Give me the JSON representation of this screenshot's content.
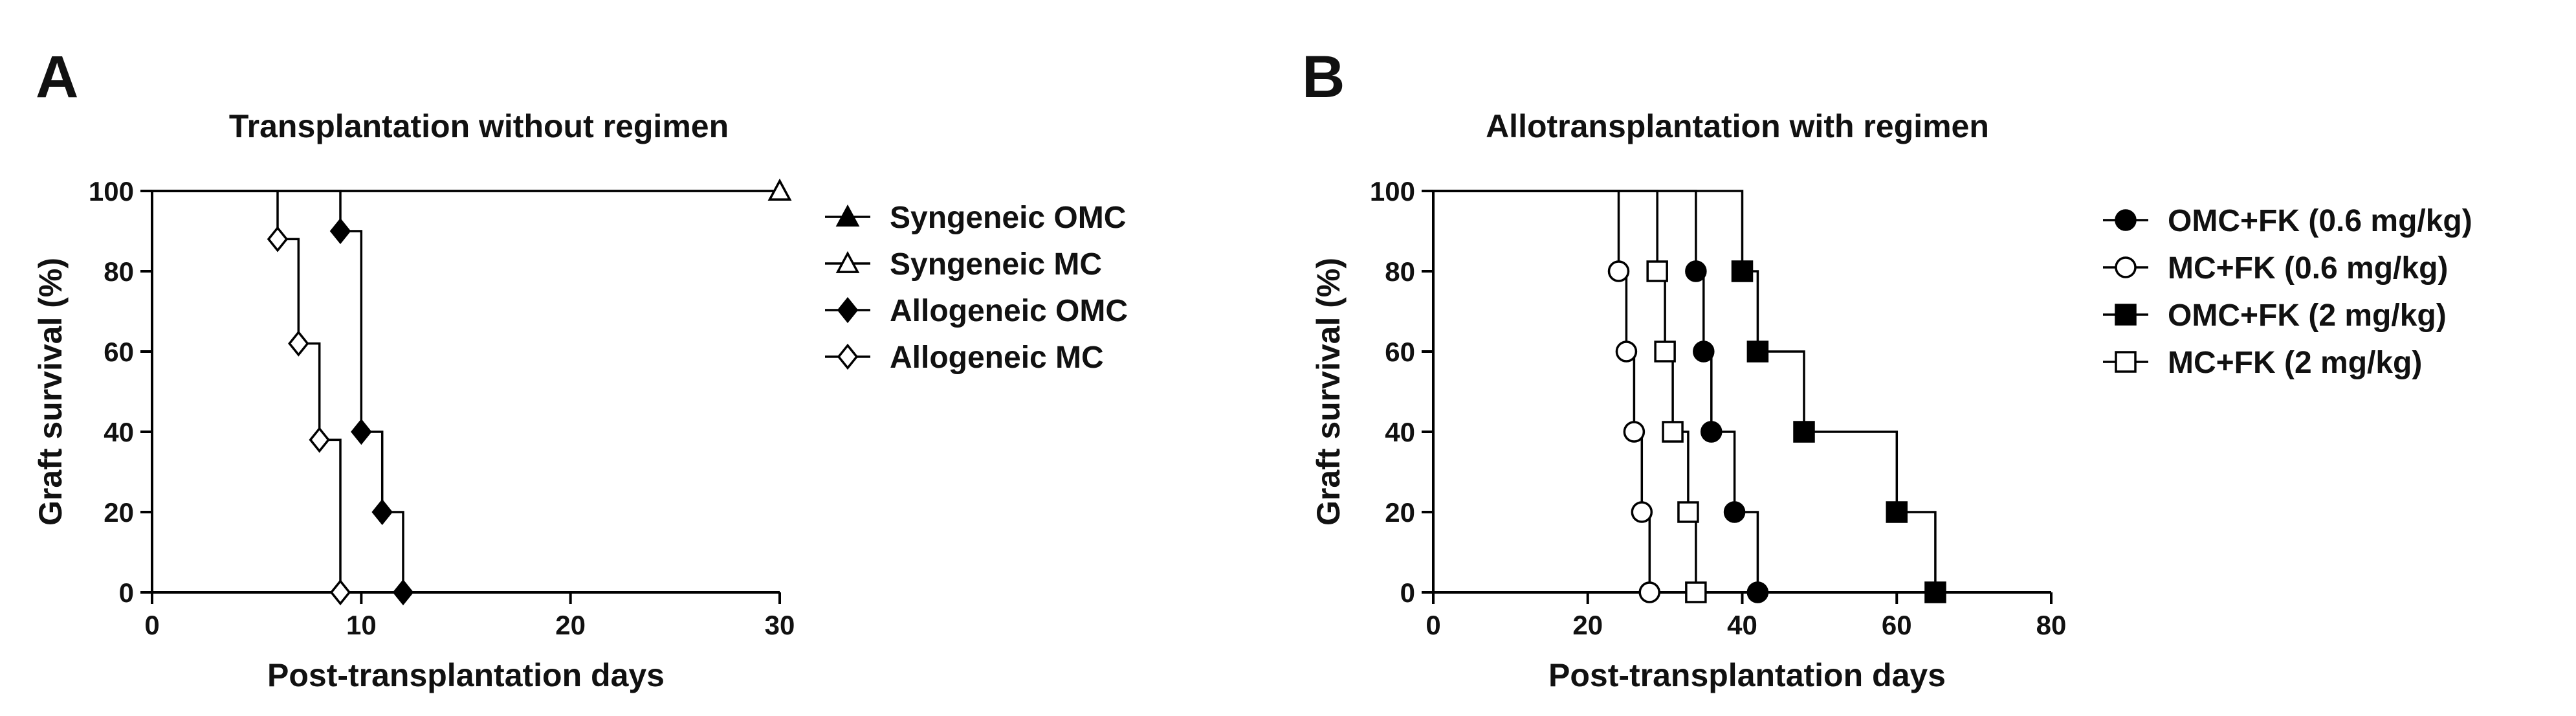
{
  "chart_data": [
    {
      "panel": "A",
      "type": "line",
      "step": true,
      "title": "Transplantation without regimen",
      "xlabel": "Post-transplantation days",
      "ylabel": "Graft survival (%)",
      "xlim": [
        0,
        30
      ],
      "ylim": [
        0,
        100
      ],
      "xticks": [
        "0",
        "10",
        "20",
        "30"
      ],
      "yticks": [
        "0",
        "20",
        "40",
        "60",
        "80",
        "100"
      ],
      "grid": false,
      "legend_position": "right",
      "series": [
        {
          "name": "Syngeneic OMC",
          "marker": "triangle-filled",
          "line": [
            [
              0,
              100
            ],
            [
              30,
              100
            ]
          ],
          "points": [
            [
              30,
              100
            ]
          ]
        },
        {
          "name": "Syngeneic MC",
          "marker": "triangle-open",
          "line": [
            [
              0,
              100
            ],
            [
              30,
              100
            ]
          ],
          "points": [
            [
              30,
              100
            ]
          ]
        },
        {
          "name": "Allogeneic OMC",
          "marker": "diamond-filled",
          "line": [
            [
              0,
              100
            ],
            [
              9,
              100
            ],
            [
              9,
              90
            ],
            [
              10,
              90
            ],
            [
              10,
              40
            ],
            [
              11,
              40
            ],
            [
              11,
              20
            ],
            [
              12,
              20
            ],
            [
              12,
              0
            ]
          ],
          "points": [
            [
              9,
              90
            ],
            [
              10,
              40
            ],
            [
              11,
              20
            ],
            [
              12,
              0
            ]
          ]
        },
        {
          "name": "Allogeneic MC",
          "marker": "diamond-open",
          "line": [
            [
              0,
              100
            ],
            [
              6,
              100
            ],
            [
              6,
              88
            ],
            [
              7,
              88
            ],
            [
              7,
              62
            ],
            [
              8,
              62
            ],
            [
              8,
              38
            ],
            [
              9,
              38
            ],
            [
              9,
              0
            ]
          ],
          "points": [
            [
              6,
              88
            ],
            [
              7,
              62
            ],
            [
              8,
              38
            ],
            [
              9,
              0
            ]
          ]
        }
      ]
    },
    {
      "panel": "B",
      "type": "line",
      "step": true,
      "title": "Allotransplantation with regimen",
      "xlabel": "Post-transplantation days",
      "ylabel": "Graft survival (%)",
      "xlim": [
        0,
        80
      ],
      "ylim": [
        0,
        100
      ],
      "xticks": [
        "0",
        "20",
        "40",
        "60",
        "80"
      ],
      "yticks": [
        "0",
        "20",
        "40",
        "60",
        "80",
        "100"
      ],
      "grid": false,
      "legend_position": "right",
      "series": [
        {
          "name": "OMC+FK (0.6 mg/kg)",
          "marker": "circle-filled",
          "line": [
            [
              0,
              100
            ],
            [
              34,
              100
            ],
            [
              34,
              80
            ],
            [
              35,
              80
            ],
            [
              35,
              60
            ],
            [
              36,
              60
            ],
            [
              36,
              40
            ],
            [
              39,
              40
            ],
            [
              39,
              20
            ],
            [
              42,
              20
            ],
            [
              42,
              0
            ]
          ],
          "points": [
            [
              34,
              80
            ],
            [
              35,
              60
            ],
            [
              36,
              40
            ],
            [
              39,
              20
            ],
            [
              42,
              0
            ]
          ]
        },
        {
          "name": "MC+FK (0.6 mg/kg)",
          "marker": "circle-open",
          "line": [
            [
              0,
              100
            ],
            [
              24,
              100
            ],
            [
              24,
              80
            ],
            [
              25,
              80
            ],
            [
              25,
              60
            ],
            [
              26,
              60
            ],
            [
              26,
              40
            ],
            [
              27,
              40
            ],
            [
              27,
              20
            ],
            [
              28,
              20
            ],
            [
              28,
              0
            ]
          ],
          "points": [
            [
              24,
              80
            ],
            [
              25,
              60
            ],
            [
              26,
              40
            ],
            [
              27,
              20
            ],
            [
              28,
              0
            ]
          ]
        },
        {
          "name": "OMC+FK (2 mg/kg)",
          "marker": "square-filled",
          "line": [
            [
              0,
              100
            ],
            [
              40,
              100
            ],
            [
              40,
              80
            ],
            [
              42,
              80
            ],
            [
              42,
              60
            ],
            [
              48,
              60
            ],
            [
              48,
              40
            ],
            [
              60,
              40
            ],
            [
              60,
              20
            ],
            [
              65,
              20
            ],
            [
              65,
              0
            ]
          ],
          "points": [
            [
              40,
              80
            ],
            [
              42,
              60
            ],
            [
              48,
              40
            ],
            [
              60,
              20
            ],
            [
              65,
              0
            ]
          ]
        },
        {
          "name": "MC+FK (2 mg/kg)",
          "marker": "square-open",
          "line": [
            [
              0,
              100
            ],
            [
              29,
              100
            ],
            [
              29,
              80
            ],
            [
              30,
              80
            ],
            [
              30,
              60
            ],
            [
              31,
              60
            ],
            [
              31,
              40
            ],
            [
              33,
              40
            ],
            [
              33,
              20
            ],
            [
              34,
              20
            ],
            [
              34,
              0
            ]
          ],
          "points": [
            [
              29,
              80
            ],
            [
              30,
              60
            ],
            [
              31,
              40
            ],
            [
              33,
              20
            ],
            [
              34,
              0
            ]
          ]
        }
      ]
    }
  ]
}
